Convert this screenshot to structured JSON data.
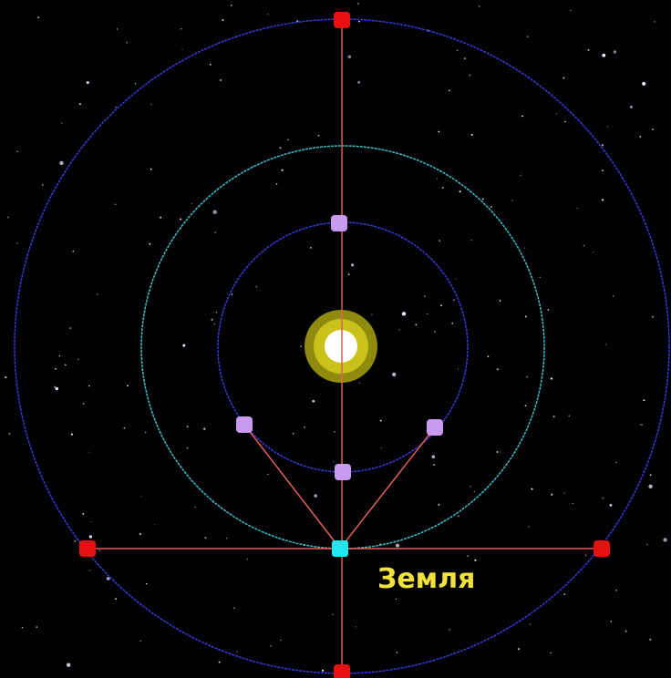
{
  "labels": {
    "earth": "Земля"
  }
}
